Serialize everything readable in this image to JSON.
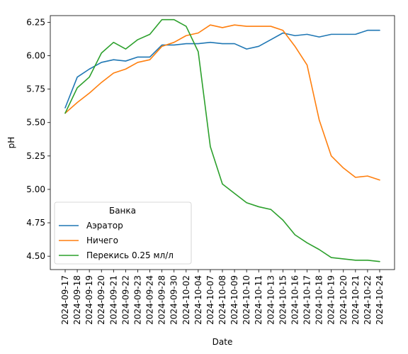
{
  "chart_data": {
    "type": "line",
    "xlabel": "Date",
    "ylabel": "pH",
    "ylim": [
      4.4,
      6.3
    ],
    "y_ticks": [
      "4.50",
      "4.75",
      "5.00",
      "5.25",
      "5.50",
      "5.75",
      "6.00",
      "6.25"
    ],
    "grid": false,
    "legend": {
      "title": "Банка",
      "placement": "lower-left"
    },
    "categories": [
      "2024-09-17",
      "2024-09-18",
      "2024-09-19",
      "2024-09-20",
      "2024-09-21",
      "2024-09-22",
      "2024-09-23",
      "2024-09-24",
      "2024-09-28",
      "2024-09-30",
      "2024-10-02",
      "2024-10-04",
      "2024-10-07",
      "2024-10-08",
      "2024-10-09",
      "2024-10-10",
      "2024-10-11",
      "2024-10-13",
      "2024-10-15",
      "2024-10-16",
      "2024-10-17",
      "2024-10-18",
      "2024-10-19",
      "2024-10-20",
      "2024-10-21",
      "2024-10-22",
      "2024-10-24"
    ],
    "series": [
      {
        "name": "Аэратор",
        "color": "#1f77b4",
        "values": [
          5.61,
          5.84,
          5.9,
          5.95,
          5.97,
          5.96,
          5.99,
          5.99,
          6.08,
          6.08,
          6.09,
          6.09,
          6.1,
          6.09,
          6.09,
          6.05,
          6.07,
          6.12,
          6.17,
          6.15,
          6.16,
          6.14,
          6.16,
          6.16,
          6.16,
          6.19,
          6.19
        ]
      },
      {
        "name": "Ничего",
        "color": "#ff7f0e",
        "values": [
          5.57,
          5.65,
          5.72,
          5.8,
          5.87,
          5.9,
          5.95,
          5.97,
          6.07,
          6.1,
          6.15,
          6.17,
          6.23,
          6.21,
          6.23,
          6.22,
          6.22,
          6.22,
          6.19,
          6.07,
          5.93,
          5.52,
          5.25,
          5.16,
          5.09,
          5.1,
          5.07
        ]
      },
      {
        "name": "Перекись 0.25 мл/л",
        "color": "#2ca02c",
        "values": [
          5.57,
          5.76,
          5.84,
          6.02,
          6.1,
          6.05,
          6.12,
          6.16,
          6.27,
          6.27,
          6.22,
          6.03,
          5.32,
          5.04,
          4.97,
          4.9,
          4.87,
          4.85,
          4.77,
          4.66,
          4.6,
          4.55,
          4.49,
          4.48,
          4.47,
          4.47,
          4.46
        ]
      }
    ]
  }
}
